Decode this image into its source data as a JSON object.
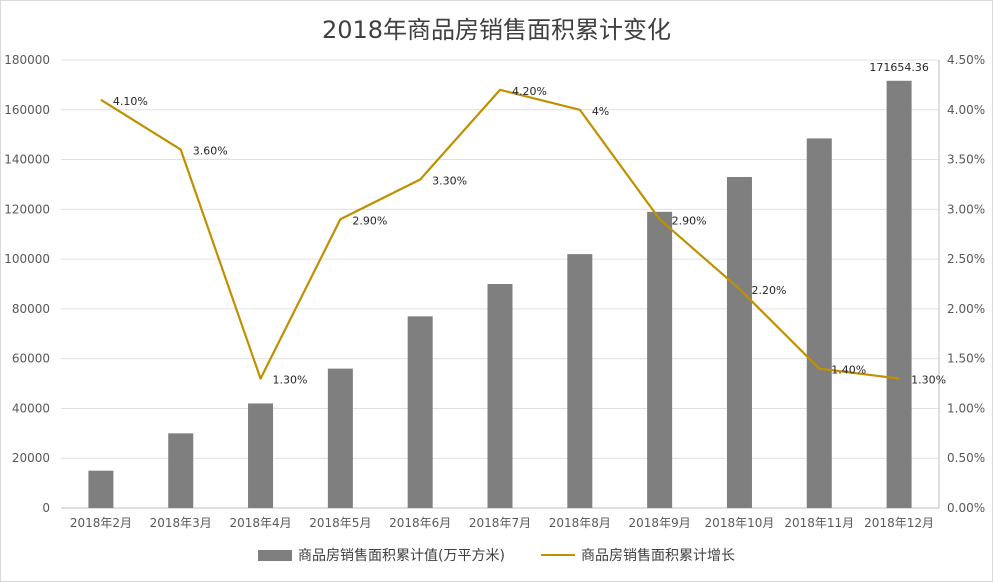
{
  "chart_data": {
    "type": "bar",
    "title": "2018年商品房销售面积累计变化",
    "categories": [
      "2018年2月",
      "2018年3月",
      "2018年4月",
      "2018年5月",
      "2018年6月",
      "2018年7月",
      "2018年8月",
      "2018年9月",
      "2018年10月",
      "2018年11月",
      "2018年12月"
    ],
    "series": [
      {
        "name": "商品房销售面积累计值(万平方米)",
        "type": "bar",
        "axis": "left",
        "color": "#7f7f7f",
        "values": [
          15000,
          30000,
          42000,
          56000,
          77000,
          90000,
          102000,
          119000,
          133000,
          148500,
          171654.36
        ]
      },
      {
        "name": "商品房销售面积累计增长",
        "type": "line",
        "axis": "right",
        "color": "#bf9000",
        "values": [
          4.1,
          3.6,
          1.3,
          2.9,
          3.3,
          4.2,
          4.0,
          2.9,
          2.2,
          1.4,
          1.3
        ],
        "labels": [
          "4.10%",
          "3.60%",
          "1.30%",
          "2.90%",
          "3.30%",
          "4.20%",
          "4%",
          "2.90%",
          "2.20%",
          "1.40%",
          "1.30%"
        ]
      }
    ],
    "bar_data_labels": [
      null,
      null,
      null,
      null,
      null,
      null,
      null,
      null,
      null,
      null,
      "171654.36"
    ],
    "left_axis": {
      "ylim": [
        0,
        180000
      ],
      "ticks": [
        "0",
        "20000",
        "40000",
        "60000",
        "80000",
        "100000",
        "120000",
        "140000",
        "160000",
        "180000"
      ]
    },
    "right_axis": {
      "ylim": [
        0,
        4.5
      ],
      "ticks": [
        "0.00%",
        "0.50%",
        "1.00%",
        "1.50%",
        "2.00%",
        "2.50%",
        "3.00%",
        "3.50%",
        "4.00%",
        "4.50%"
      ]
    },
    "grid": true,
    "legend": "bottom"
  }
}
